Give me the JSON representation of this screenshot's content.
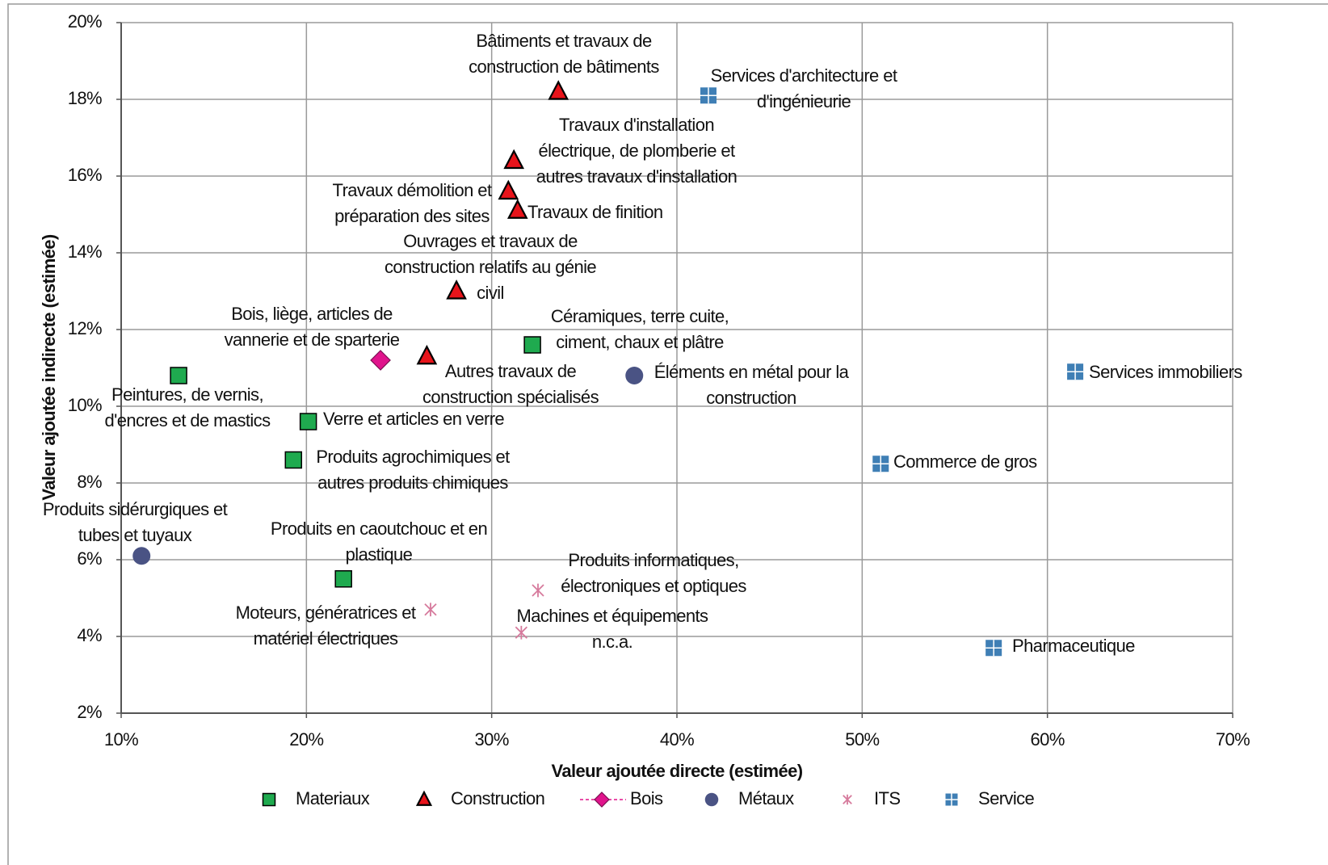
{
  "chart_data": {
    "type": "scatter",
    "xlabel": "Valeur ajoutée directe (estimée)",
    "ylabel": "Valeur ajoutée indirecte (estimée)",
    "xlim": [
      10,
      70
    ],
    "ylim": [
      2,
      20
    ],
    "xticks": [
      {
        "value": 10,
        "label": "10%"
      },
      {
        "value": 20,
        "label": "20%"
      },
      {
        "value": 30,
        "label": "30%"
      },
      {
        "value": 40,
        "label": "40%"
      },
      {
        "value": 50,
        "label": "50%"
      },
      {
        "value": 60,
        "label": "60%"
      },
      {
        "value": 70,
        "label": "70%"
      }
    ],
    "yticks": [
      {
        "value": 2,
        "label": "2%"
      },
      {
        "value": 4,
        "label": "4%"
      },
      {
        "value": 6,
        "label": "6%"
      },
      {
        "value": 8,
        "label": "8%"
      },
      {
        "value": 10,
        "label": "10%"
      },
      {
        "value": 12,
        "label": "12%"
      },
      {
        "value": 14,
        "label": "14%"
      },
      {
        "value": 16,
        "label": "16%"
      },
      {
        "value": 18,
        "label": "18%"
      },
      {
        "value": 20,
        "label": "20%"
      }
    ],
    "grid": true,
    "legend": "bottom",
    "series": [
      {
        "name": "Materiaux",
        "color": "#1faa4f",
        "marker": "square",
        "x": [
          13.1,
          20.1,
          19.3,
          22.0,
          32.2
        ],
        "values": [
          10.8,
          9.6,
          8.6,
          5.5,
          11.6
        ],
        "labels": [
          "Peintures, de vernis,\nd'encres et de mastics",
          "Verre et articles en verre",
          "Produits agrochimiques et\nautres produits chimiques",
          "Produits en caoutchouc et en\nplastique",
          "Céramiques, terre cuite,\nciment, chaux et plâtre"
        ]
      },
      {
        "name": "Construction",
        "color": "#e8141b",
        "marker": "triangle",
        "x": [
          33.6,
          31.2,
          30.9,
          31.4,
          28.1,
          26.5
        ],
        "values": [
          18.2,
          16.4,
          15.6,
          15.1,
          13.0,
          11.3
        ],
        "labels": [
          "Bâtiments et travaux de\nconstruction de bâtiments",
          "Travaux d'installation\nélectrique, de plomberie et\nautres travaux d'installation",
          "Travaux démolition et\npréparation des sites",
          "Travaux de finition",
          "Ouvrages et travaux de\nconstruction relatifs au génie\ncivil",
          "Autres travaux de\nconstruction spécialisés"
        ]
      },
      {
        "name": "Bois",
        "color": "#e0148c",
        "marker": "diamond",
        "x": [
          24.0
        ],
        "values": [
          11.2
        ],
        "labels": [
          "Bois, liège, articles de\nvannerie et de sparterie"
        ]
      },
      {
        "name": "Métaux",
        "color": "#4a5384",
        "marker": "circle",
        "x": [
          11.1,
          37.7
        ],
        "values": [
          6.1,
          10.8
        ],
        "labels": [
          "Produits sidérurgiques et\ntubes et tuyaux",
          "Éléments en métal pour la\nconstruction"
        ]
      },
      {
        "name": "ITS",
        "color": "#d67a9c",
        "marker": "star",
        "x": [
          26.7,
          32.5,
          31.6
        ],
        "values": [
          4.7,
          5.2,
          4.1
        ],
        "labels": [
          "Moteurs, génératrices et\nmatériel électriques",
          "Produits informatiques,\nélectroniques et optiques",
          "Machines et équipements\nn.c.a."
        ]
      },
      {
        "name": "Service",
        "color": "#3f7fb5",
        "marker": "cross",
        "x": [
          41.7,
          61.5,
          51.0,
          57.1
        ],
        "values": [
          18.1,
          10.9,
          8.5,
          3.7
        ],
        "labels": [
          "Services d'architecture et\nd'ingénieurie",
          "Services immobiliers",
          "Commerce de gros",
          "Pharmaceutique"
        ]
      }
    ]
  }
}
